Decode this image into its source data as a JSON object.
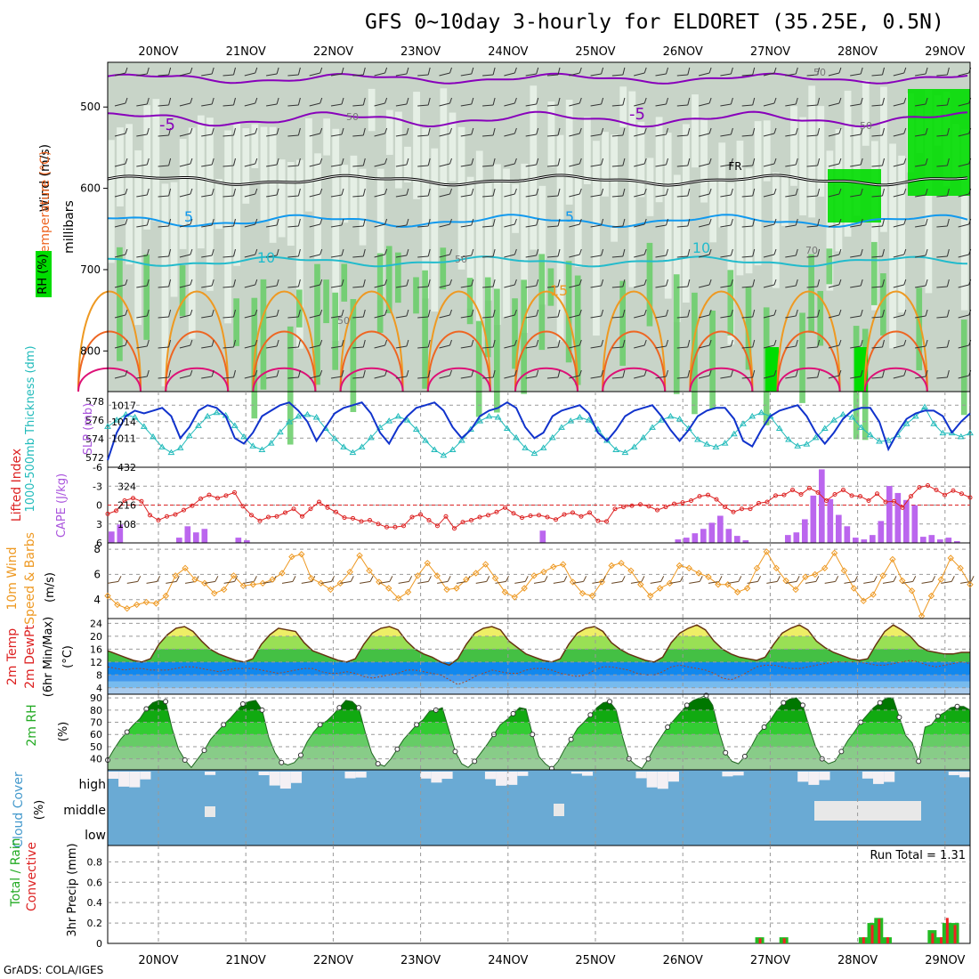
{
  "title": "GFS 0~10day 3-hourly for ELDORET (35.25E, 0.5N)",
  "credit": "GrADS: COLA/IGES",
  "date_labels": [
    "20NOV",
    "21NOV",
    "22NOV",
    "23NOV",
    "24NOV",
    "25NOV",
    "26NOV",
    "27NOV",
    "28NOV",
    "29NOV"
  ],
  "colors": {
    "rh_dark": "#00dd00",
    "rh_mid": "#66cc66",
    "rh_light": "#a8d8a8",
    "rh_gray": "#c8d4c8",
    "temp_minus5": "#8800bb",
    "temp_5": "#1199ee",
    "temp_10": "#22bbcc",
    "temp_15": "#ee9922",
    "temp_20": "#ee6622",
    "temp_25": "#dd1177",
    "slp": "#1133cc",
    "thickness": "#22bbbb",
    "cape": "#bb66ee",
    "lifted_index": "#dd2222",
    "wind_speed": "#ee9922",
    "cloud": "#6aaad4",
    "precip_total": "#22bb22",
    "precip_conv": "#ee2222"
  },
  "chart_data": [
    {
      "type": "heatmap",
      "panel": "upper-air",
      "ylabels": [
        "Wind (m/s)",
        "Temperature (°C)",
        "RH (%)",
        "millibars"
      ],
      "yticks": [
        500,
        600,
        700,
        800
      ],
      "ylim": [
        850,
        445
      ],
      "contour_labels": [
        "-5",
        "-5",
        "5",
        "5",
        "10",
        "10",
        "15",
        "FR",
        "50",
        "50",
        "50",
        "50",
        "70",
        "50"
      ],
      "freezing_level_mb": 590,
      "isotherms_mb": {
        "-5": 515,
        "5": 640,
        "10": 690,
        "15": 760
      }
    },
    {
      "type": "line",
      "panel": "slp-thickness",
      "ylabels": [
        "SLP (mb)",
        "1000-500mb Thickness (dm)"
      ],
      "left_ticks": [
        "578",
        "576",
        "574",
        "572"
      ],
      "right_ticks": [
        "1017",
        "1014",
        "1011"
      ],
      "series": [
        {
          "name": "SLP",
          "axis": "right",
          "values": [
            1007,
            1012,
            1015,
            1016,
            1015.5,
            1016,
            1016.5,
            1015,
            1011,
            1013,
            1016,
            1017,
            1016.5,
            1015,
            1011,
            1010,
            1012,
            1015,
            1016,
            1017,
            1017.5,
            1016,
            1014,
            1010.5,
            1013,
            1015.5,
            1016.5,
            1017,
            1017.5,
            1015.5,
            1012,
            1010,
            1013,
            1015,
            1016.5,
            1017,
            1017.5,
            1016,
            1013,
            1011,
            1012.5,
            1015,
            1016,
            1016.5,
            1017.5,
            1016.5,
            1013,
            1011,
            1012,
            1015,
            1016,
            1016.5,
            1017,
            1015.5,
            1012,
            1010.5,
            1012.5,
            1015,
            1016,
            1016.5,
            1017,
            1015,
            1012.5,
            1010.5,
            1012.5,
            1015,
            1016,
            1016.5,
            1016.5,
            1014.5,
            1010.5,
            1009.5,
            1012.5,
            1015,
            1016,
            1016.5,
            1017,
            1015,
            1012,
            1010,
            1012,
            1014.5,
            1016,
            1016.5,
            1016.5,
            1014,
            1009,
            1012,
            1014.5,
            1015.5,
            1016,
            1016,
            1015,
            1012,
            1014,
            1015.5
          ]
        },
        {
          "name": "Thickness",
          "axis": "left",
          "values": [
            575.3,
            576,
            576.6,
            576.3,
            575.3,
            574.2,
            573.1,
            572.5,
            573,
            574.3,
            575.4,
            576.4,
            576.8,
            576.5,
            575.4,
            574.2,
            573.2,
            572.8,
            573.5,
            574.7,
            575.8,
            576.4,
            576.6,
            576.3,
            575.1,
            574,
            573.1,
            572.5,
            573.1,
            574.1,
            575.2,
            575.9,
            576.4,
            576,
            575,
            573.8,
            572.8,
            572.2,
            572.8,
            573.8,
            575,
            575.9,
            576.4,
            576.3,
            575.1,
            574.1,
            573,
            572.4,
            573,
            574.1,
            575.2,
            575.9,
            576.3,
            576,
            575,
            573.8,
            572.8,
            572.5,
            573.1,
            574.1,
            575.2,
            576,
            576.4,
            576.1,
            575.1,
            573.9,
            573.4,
            573.1,
            573.5,
            574.5,
            575.6,
            576.4,
            576.8,
            576.4,
            575.1,
            573.9,
            573.2,
            573.4,
            574.1,
            575.1,
            576,
            576.6,
            576.3,
            575.2,
            574.4,
            573.7,
            573.8,
            574.4,
            575.6,
            576.4,
            577.4,
            575.6,
            574.6,
            574.6,
            574.2,
            574.6
          ]
        }
      ]
    },
    {
      "type": "bar",
      "panel": "cape-li",
      "ylabels": [
        "CAPE (J/kg)",
        "Lifted Index"
      ],
      "left_ticks": [
        "-6",
        "-3",
        "0",
        "3",
        "6"
      ],
      "right_ticks": [
        "432",
        "324",
        "216",
        "108"
      ],
      "series": [
        {
          "name": "CAPE",
          "axis": "right",
          "values": [
            65,
            105,
            0,
            0,
            0,
            0,
            0,
            0,
            30,
            95,
            60,
            80,
            0,
            0,
            0,
            30,
            15,
            0,
            0,
            0,
            0,
            0,
            0,
            0,
            0,
            0,
            0,
            0,
            0,
            0,
            0,
            0,
            0,
            0,
            0,
            0,
            0,
            0,
            0,
            0,
            0,
            0,
            0,
            0,
            0,
            0,
            0,
            0,
            0,
            0,
            0,
            70,
            0,
            0,
            0,
            0,
            0,
            0,
            0,
            0,
            0,
            0,
            0,
            0,
            0,
            0,
            0,
            20,
            30,
            55,
            80,
            115,
            155,
            80,
            40,
            15,
            0,
            0,
            0,
            0,
            45,
            60,
            135,
            270,
            420,
            250,
            160,
            95,
            30,
            20,
            45,
            125,
            325,
            285,
            245,
            215,
            35,
            45,
            20,
            30,
            10,
            0
          ]
        },
        {
          "name": "Lifted Index",
          "axis": "left",
          "values": [
            1.4,
            0.9,
            -0.7,
            -1.1,
            -0.6,
            1.6,
            2.4,
            1.8,
            1.5,
            0.8,
            0.1,
            -1,
            -1.6,
            -1.1,
            -1.5,
            -2,
            0.2,
            1.6,
            2.5,
            1.9,
            1.8,
            1.2,
            0.6,
            1.8,
            0.6,
            -0.5,
            0.4,
            1.1,
            2,
            2.1,
            2.6,
            2.4,
            3,
            3.5,
            3.5,
            3.3,
            1.9,
            1.5,
            2.4,
            3.3,
            1.8,
            3.7,
            2.7,
            2.4,
            1.9,
            1.6,
            1.1,
            0.4,
            1.3,
            2,
            1.7,
            1.6,
            1.9,
            2.3,
            1.5,
            1.2,
            1.8,
            1.2,
            2.5,
            2.6,
            0.6,
            0.3,
            0.1,
            -0.1,
            0.2,
            0.8,
            0.3,
            -0.2,
            -0.4,
            -0.7,
            -1.4,
            -1.6,
            -0.9,
            0.3,
            1.1,
            0.6,
            0.6,
            -0.3,
            -0.5,
            -1.5,
            -1.6,
            -2.4,
            -1.7,
            -2.7,
            -2,
            -0.7,
            -1.7,
            -2.4,
            -1.5,
            -1.4,
            -0.7,
            -1.8,
            -0.5,
            -0.6,
            0.4,
            -1.4,
            -2.8,
            -3.1,
            -2.4,
            -1.6,
            -2.3,
            -1.8,
            -1.2
          ]
        }
      ]
    },
    {
      "type": "line",
      "panel": "10m-wind",
      "ylabels": [
        "10m Wind",
        "Speed & Barbs",
        "(m/s)"
      ],
      "yticks": [
        4,
        6,
        8
      ],
      "series": [
        {
          "name": "Speed",
          "values": [
            4.3,
            3.6,
            3.3,
            3.6,
            3.8,
            3.7,
            4.3,
            5.9,
            6.5,
            5.6,
            5.3,
            4.5,
            4.8,
            5.9,
            5.1,
            5.2,
            5.3,
            5.6,
            6.1,
            7.4,
            7.6,
            5.7,
            5.3,
            4.8,
            5.3,
            6.2,
            7.5,
            6.3,
            5.4,
            4.9,
            4.1,
            4.6,
            5.9,
            6.9,
            5.9,
            4.8,
            4.9,
            5.6,
            6.1,
            6.8,
            5.7,
            4.6,
            4.2,
            4.9,
            5.9,
            6.2,
            6.6,
            6.8,
            5.4,
            4.5,
            4.3,
            5.4,
            6.7,
            6.9,
            6.3,
            5.2,
            4.3,
            4.9,
            5.3,
            6.7,
            6.5,
            6.1,
            5.8,
            5.2,
            5.2,
            4.6,
            4.9,
            6.5,
            7.8,
            6.5,
            5.5,
            4.8,
            5.8,
            6,
            6.5,
            7.7,
            6.3,
            4.9,
            3.9,
            4.4,
            5.9,
            7.2,
            5.5,
            4.7,
            2.7,
            4.3,
            5.6,
            7.3,
            6.5,
            5.2
          ]
        }
      ]
    },
    {
      "type": "area",
      "panel": "2m-temp",
      "ylabels": [
        "2m Temp",
        "2m DewPt",
        "(6hr Min/Max)",
        "(°C)"
      ],
      "yticks": [
        4,
        8,
        12,
        16,
        20,
        24
      ],
      "series": [
        {
          "name": "Temp",
          "values": [
            15.5,
            14.5,
            13.5,
            12.5,
            12,
            13,
            17.5,
            20.5,
            22.5,
            23,
            21.5,
            18.5,
            16,
            14.5,
            13.5,
            12.5,
            12,
            13,
            17.5,
            20.5,
            22.5,
            22,
            21.5,
            18,
            15.5,
            14.5,
            13.5,
            12.5,
            12,
            13,
            17.5,
            21,
            22.5,
            23,
            22,
            18.5,
            16,
            14.5,
            13.5,
            12,
            11,
            13,
            17.5,
            21,
            22.5,
            23,
            22,
            18.5,
            16.5,
            14.5,
            13.5,
            12.5,
            12,
            13,
            17.5,
            21,
            22.5,
            23,
            21.5,
            18,
            16,
            14.5,
            13.5,
            12.5,
            12,
            13.5,
            18,
            21,
            22.5,
            23.5,
            22,
            18.5,
            16,
            14.5,
            13.5,
            13,
            12.5,
            13.5,
            17.5,
            21,
            22.5,
            23.5,
            22,
            18.5,
            16.5,
            15,
            14,
            13,
            12.5,
            13,
            17.5,
            21.5,
            23.5,
            22,
            20,
            17,
            15.5,
            15,
            14.5,
            14.5,
            15,
            15
          ]
        },
        {
          "name": "DewPt",
          "values": [
            10.5,
            10,
            9.5,
            10,
            10,
            9.5,
            9.5,
            9.5,
            10,
            10.5,
            10.5,
            10,
            9.5,
            9,
            9.5,
            10,
            10,
            10,
            9.5,
            9,
            8.5,
            9,
            9.5,
            10,
            10,
            9,
            8.5,
            8.5,
            9,
            8.5,
            7.5,
            7,
            7.5,
            8,
            8.5,
            9.5,
            9.5,
            9,
            8.5,
            8,
            6.5,
            5,
            6,
            7.5,
            8.5,
            9.5,
            9,
            8.5,
            8.5,
            9.5,
            10,
            10,
            9.5,
            8.5,
            8,
            7.5,
            8,
            9.5,
            10.5,
            10.5,
            10,
            9.5,
            8.5,
            8,
            8,
            9,
            10.5,
            11,
            10.5,
            10,
            9.5,
            8.5,
            7,
            6.5,
            7.5,
            9,
            10.5,
            11,
            11,
            10.5,
            10,
            10,
            10.5,
            11,
            11.5,
            12,
            12,
            12,
            12,
            11.5,
            11,
            11,
            11.5,
            12,
            12.5,
            12,
            11,
            10.5,
            11,
            11.5,
            12,
            11.5
          ]
        }
      ]
    },
    {
      "type": "area",
      "panel": "2m-rh",
      "ylabels": [
        "2m RH",
        "(%)"
      ],
      "yticks": [
        40,
        50,
        60,
        70,
        80,
        90
      ],
      "series": [
        {
          "name": "RH",
          "values": [
            39,
            48,
            56,
            62,
            68,
            73,
            81,
            86,
            88,
            87,
            65,
            48,
            39,
            33,
            40,
            47,
            56,
            62,
            68,
            73,
            79,
            85,
            87,
            88,
            80,
            58,
            45,
            37,
            35,
            37,
            43,
            54,
            62,
            68,
            71,
            76,
            82,
            88,
            87,
            82,
            62,
            45,
            36,
            34,
            40,
            48,
            56,
            62,
            68,
            72,
            79,
            80,
            82,
            64,
            46,
            36,
            33,
            38,
            45,
            52,
            60,
            68,
            72,
            77,
            82,
            81,
            60,
            42,
            36,
            32,
            38,
            48,
            56,
            65,
            70,
            76,
            82,
            86,
            87,
            80,
            58,
            40,
            35,
            32,
            40,
            50,
            58,
            66,
            72,
            78,
            84,
            88,
            90,
            92,
            84,
            62,
            45,
            38,
            36,
            42,
            50,
            60,
            66,
            72,
            80,
            86,
            89,
            90,
            84,
            66,
            50,
            40,
            36,
            38,
            46,
            55,
            62,
            70,
            76,
            82,
            86,
            90,
            90,
            74,
            59,
            53,
            38,
            66,
            68,
            75,
            78,
            82,
            83,
            83,
            80
          ]
        }
      ]
    },
    {
      "type": "heatmap",
      "panel": "cloud-cover",
      "ylabels": [
        "Cloud Cover",
        "(%)"
      ],
      "levels": [
        "high",
        "middle",
        "low"
      ]
    },
    {
      "type": "bar",
      "panel": "precip",
      "ylabels": [
        "Total / Rain",
        "Convective",
        "3hr Precip (mm)"
      ],
      "yticks": [
        0,
        0.2,
        0.4,
        0.6,
        0.8
      ],
      "run_total_label": "Run Total = 1.31",
      "series": [
        {
          "name": "Total",
          "values": [
            {
              "x": 75.6,
              "v": 0.06
            },
            {
              "x": 78.4,
              "v": 0.06
            },
            {
              "x": 87.6,
              "v": 0.06
            },
            {
              "x": 88.6,
              "v": 0.2
            },
            {
              "x": 89.4,
              "v": 0.25
            },
            {
              "x": 90.4,
              "v": 0.06
            },
            {
              "x": 95.6,
              "v": 0.13
            },
            {
              "x": 96.6,
              "v": 0.06
            },
            {
              "x": 97.3,
              "v": 0.2
            },
            {
              "x": 98.2,
              "v": 0.2
            }
          ]
        },
        {
          "name": "Convective",
          "values": [
            {
              "x": 75.6,
              "v": 0.05
            },
            {
              "x": 78.4,
              "v": 0.05
            },
            {
              "x": 87.6,
              "v": 0.06
            },
            {
              "x": 88.6,
              "v": 0.18
            },
            {
              "x": 89.4,
              "v": 0.24
            },
            {
              "x": 90.4,
              "v": 0.06
            },
            {
              "x": 95.6,
              "v": 0.1
            },
            {
              "x": 96.6,
              "v": 0.06
            },
            {
              "x": 97.3,
              "v": 0.25
            },
            {
              "x": 98.2,
              "v": 0.18
            }
          ]
        }
      ]
    }
  ]
}
